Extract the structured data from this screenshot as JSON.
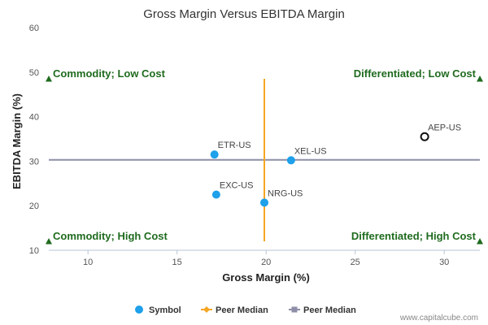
{
  "chart_data": {
    "type": "scatter",
    "title": "Gross Margin Versus EBITDA Margin",
    "xlabel": "Gross Margin (%)",
    "ylabel": "EBITDA Margin (%)",
    "xlim": [
      7.8,
      32
    ],
    "ylim": [
      10,
      60
    ],
    "xticks": [
      10,
      15,
      20,
      25,
      30
    ],
    "yticks": [
      10,
      20,
      30,
      40,
      50,
      60
    ],
    "grid": false,
    "colors": {
      "symbol": "#1ea0ea",
      "highlight": "#111111",
      "peer_median_x": "#f5a623",
      "peer_median_y": "#8e8ea8",
      "quadrant": "#1f6b1f"
    },
    "points": [
      {
        "label": "AEP-US",
        "x": 28.9,
        "y": 35.5,
        "highlight": true
      },
      {
        "label": "ETR-US",
        "x": 17.1,
        "y": 31.5,
        "highlight": false
      },
      {
        "label": "XEL-US",
        "x": 21.4,
        "y": 30.2,
        "highlight": false
      },
      {
        "label": "EXC-US",
        "x": 17.2,
        "y": 22.5,
        "highlight": false
      },
      {
        "label": "NRG-US",
        "x": 19.9,
        "y": 20.7,
        "highlight": false
      }
    ],
    "peer_median_x": 19.9,
    "peer_median_y": 30.3,
    "peer_median_x_yrange": [
      12,
      48.5
    ],
    "quadrants": [
      {
        "label": "Commodity; Low Cost",
        "corner": "top-left",
        "marker_y": 48.5
      },
      {
        "label": "Differentiated; Low Cost",
        "corner": "top-right",
        "marker_y": 48.5
      },
      {
        "label": "Commodity; High Cost",
        "corner": "bottom-left",
        "marker_y": 12
      },
      {
        "label": "Differentiated; High Cost",
        "corner": "bottom-right",
        "marker_y": 12
      }
    ],
    "legend": {
      "placement": "bottom-center",
      "items": [
        {
          "label": "Symbol",
          "marker": "circle"
        },
        {
          "label": "Peer Median",
          "marker": "diamond-line"
        },
        {
          "label": "Peer Median",
          "marker": "square-line"
        }
      ]
    },
    "watermark": "www.capitalcube.com"
  }
}
